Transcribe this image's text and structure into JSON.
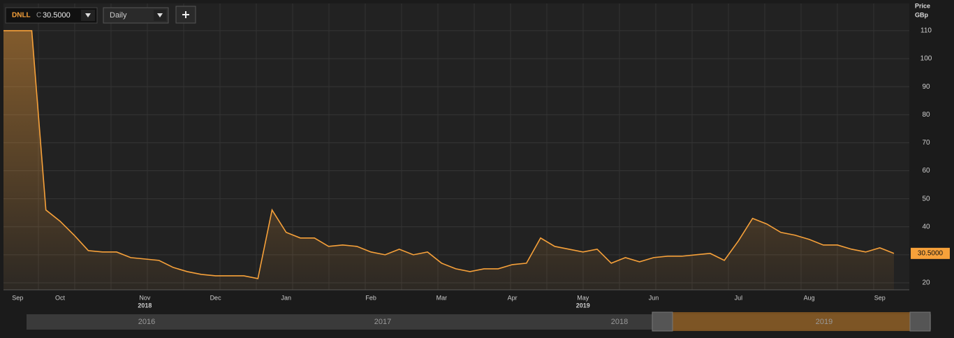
{
  "toolbar": {
    "symbol": "DNLL",
    "close_prefix": "C",
    "price": "30.5000",
    "interval": "Daily"
  },
  "chart_data": {
    "type": "line",
    "y_label": "Price",
    "y_unit": "GBp",
    "color": "#f7a13a",
    "area": true,
    "grid": true,
    "categories": [
      null,
      "Sep",
      null,
      null,
      "Oct",
      null,
      null,
      null,
      null,
      null,
      "Nov",
      null,
      null,
      null,
      null,
      "Dec",
      null,
      null,
      null,
      null,
      "Jan",
      null,
      null,
      null,
      null,
      null,
      "Feb",
      null,
      null,
      null,
      null,
      "Mar",
      null,
      null,
      null,
      null,
      "Apr",
      null,
      null,
      null,
      null,
      "May",
      null,
      null,
      null,
      null,
      "Jun",
      null,
      null,
      null,
      null,
      null,
      "Jul",
      null,
      null,
      null,
      null,
      "Aug",
      null,
      null,
      null,
      null,
      "Sep",
      null
    ],
    "values": [
      110,
      110,
      110,
      46,
      42,
      37,
      31.5,
      31,
      31,
      29,
      28.5,
      28,
      25.5,
      24,
      23,
      22.5,
      22.5,
      22.5,
      21.5,
      46,
      38,
      36,
      36,
      33,
      33.5,
      33,
      31,
      30,
      32,
      30,
      31,
      27,
      25,
      24,
      25,
      25,
      26.5,
      27,
      36,
      33,
      32,
      31,
      32,
      27,
      29,
      27.5,
      29,
      29.5,
      29.5,
      30,
      30.5,
      28,
      35,
      43,
      41,
      38,
      37,
      35.5,
      33.5,
      33.5,
      32,
      31,
      32.5,
      30.5
    ],
    "last_value_label": "30.5000",
    "year_labels": [
      {
        "label": "2018",
        "at": 10
      },
      {
        "label": "2019",
        "at": 41
      }
    ],
    "ylim": [
      17.5,
      119.7
    ],
    "yticks": [
      20,
      30,
      40,
      50,
      60,
      70,
      80,
      90,
      100,
      110
    ],
    "navigator_labels": [
      "2016",
      "2017",
      "2018",
      "2019"
    ]
  }
}
